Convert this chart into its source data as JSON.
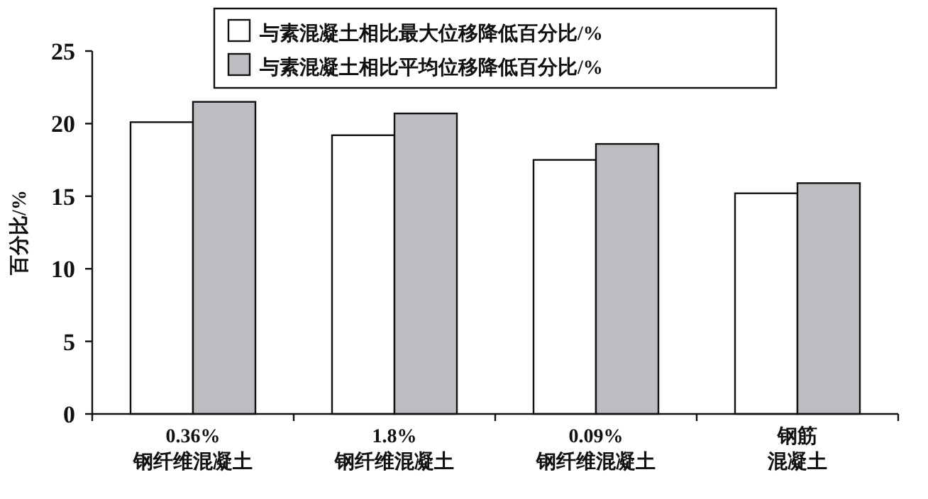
{
  "chart_data": {
    "type": "bar",
    "ylabel": "百分比/%",
    "categories": [
      "0.36%\n钢纤维混凝土",
      "1.8%\n钢纤维混凝土",
      "0.09%\n钢纤维混凝土",
      "钢筋混凝土"
    ],
    "series": [
      {
        "name": "与素混凝土相比最大位移降低百分比/%",
        "color": "#ffffff",
        "values": [
          20.1,
          19.2,
          17.5,
          15.2
        ]
      },
      {
        "name": "与素混凝土相比平均位移降低百分比/%",
        "color": "#bcbdc1",
        "values": [
          21.5,
          20.7,
          18.6,
          15.9
        ]
      }
    ],
    "ylim": [
      0,
      25
    ],
    "yticks": [
      0,
      5,
      10,
      15,
      20,
      25
    ],
    "grid": false,
    "legend": "top"
  }
}
